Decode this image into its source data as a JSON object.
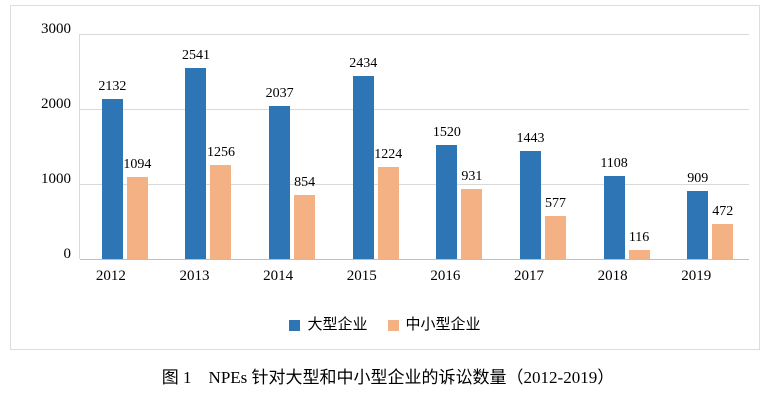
{
  "figure": {
    "caption": "图 1　NPEs 针对大型和中小型企业的诉讼数量（2012-2019）"
  },
  "chart_data": {
    "type": "bar",
    "title": "",
    "xlabel": "",
    "ylabel": "",
    "categories": [
      "2012",
      "2013",
      "2014",
      "2015",
      "2016",
      "2017",
      "2018",
      "2019"
    ],
    "series": [
      {
        "name": "大型企业",
        "color": "#2E75B6",
        "values": [
          2132,
          2541,
          2037,
          2434,
          1520,
          1443,
          1108,
          909
        ]
      },
      {
        "name": "中小型企业",
        "color": "#F4B183",
        "values": [
          1094,
          1256,
          854,
          1224,
          931,
          577,
          116,
          472
        ]
      }
    ],
    "ylim": [
      0,
      3000
    ],
    "yticks": [
      0,
      1000,
      2000,
      3000
    ],
    "grid": true,
    "data_labels": true,
    "legend_position": "bottom"
  },
  "colors": {
    "series_large": "#2E75B6",
    "series_sme": "#F4B183",
    "gridline": "#d9d9d9",
    "axis": "#bfbfbf",
    "chart_border": "#d9dee3",
    "text": "#000000",
    "background": "#ffffff"
  }
}
